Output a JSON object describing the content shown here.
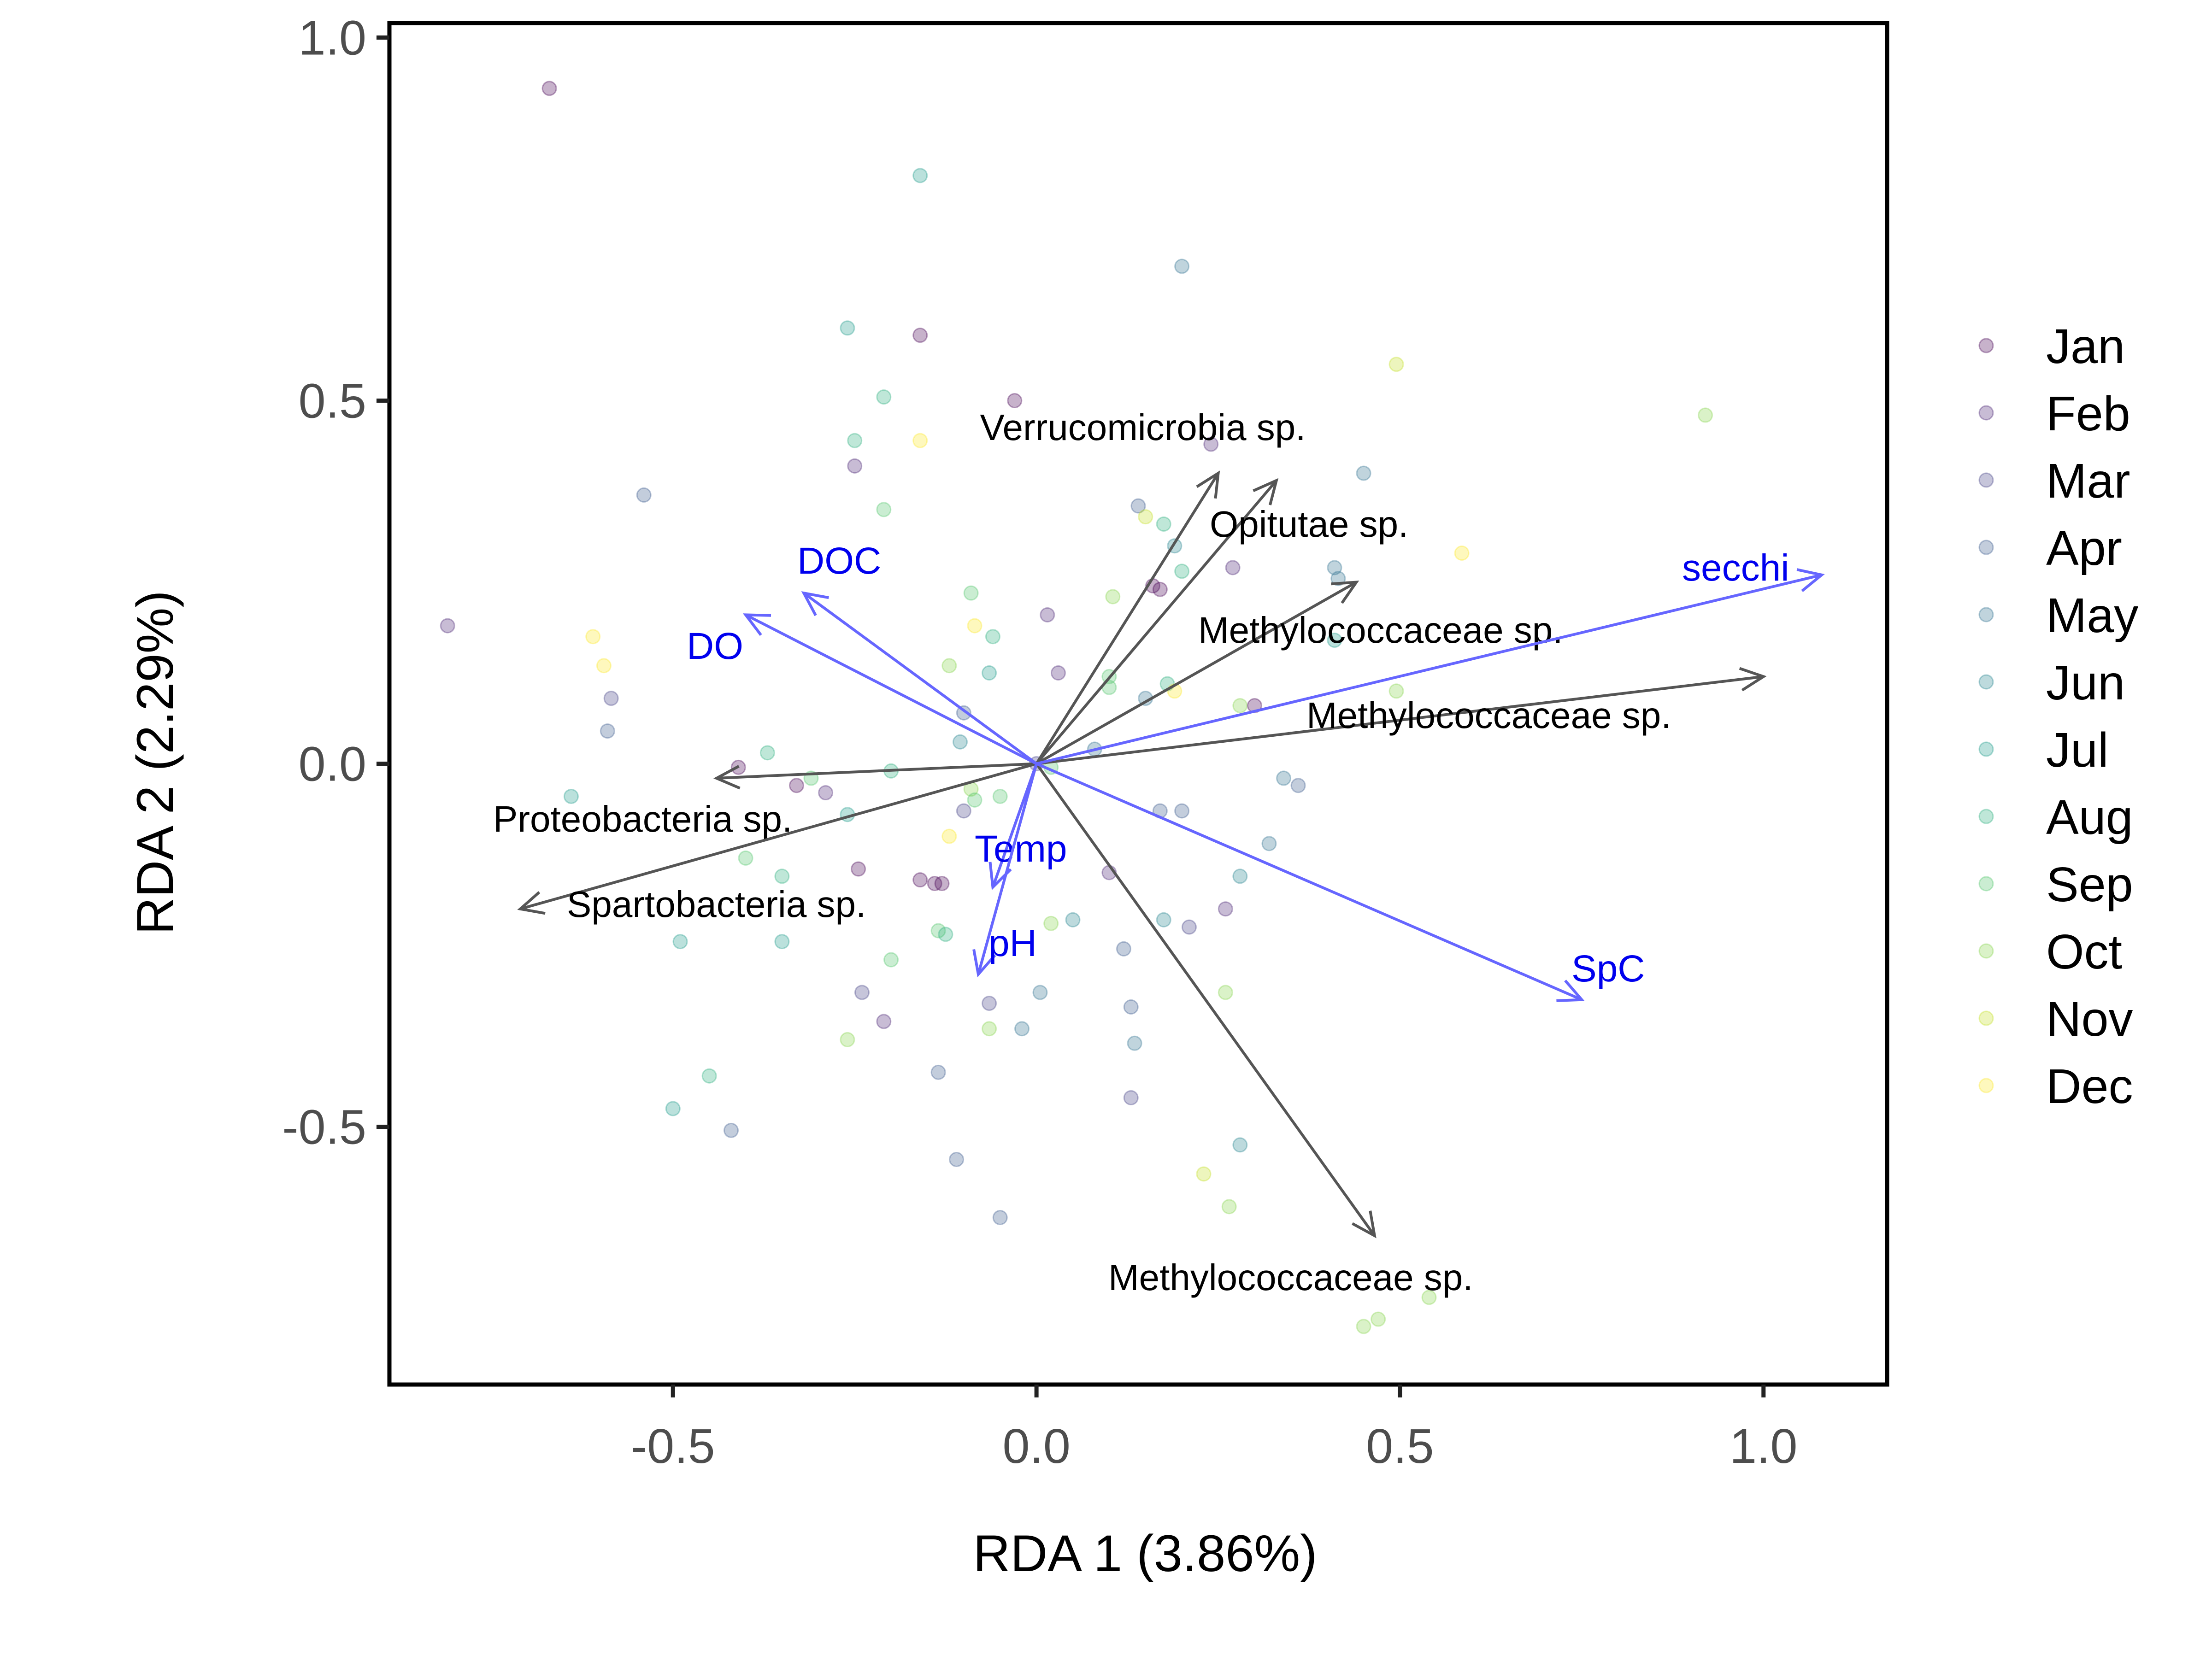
{
  "chart_data": {
    "type": "scatter",
    "xlabel": "RDA 1 (3.86%)",
    "ylabel": "RDA 2 (2.29%)",
    "xlim": [
      -0.89,
      1.17
    ],
    "ylim": [
      -0.855,
      1.02
    ],
    "xticks": [
      -0.5,
      0.0,
      0.5,
      1.0
    ],
    "xtick_labels": [
      "-0.5",
      "0.0",
      "0.5",
      "1.0"
    ],
    "yticks": [
      -0.5,
      0.0,
      0.5,
      1.0
    ],
    "ytick_labels": [
      "-0.5",
      "0.0",
      "0.5",
      "1.0"
    ],
    "grid": false,
    "legend_position": "right",
    "legend": [
      {
        "name": "Jan",
        "color": "#440154"
      },
      {
        "name": "Feb",
        "color": "#482173"
      },
      {
        "name": "Mar",
        "color": "#433E85"
      },
      {
        "name": "Apr",
        "color": "#38598C"
      },
      {
        "name": "May",
        "color": "#2D708E"
      },
      {
        "name": "Jun",
        "color": "#25858E"
      },
      {
        "name": "Jul",
        "color": "#1E9B8A"
      },
      {
        "name": "Aug",
        "color": "#2BB07F"
      },
      {
        "name": "Sep",
        "color": "#51C56A"
      },
      {
        "name": "Oct",
        "color": "#85D54A"
      },
      {
        "name": "Nov",
        "color": "#C2DF23"
      },
      {
        "name": "Dec",
        "color": "#FDE725"
      }
    ],
    "point_opacity": 0.3,
    "points": [
      {
        "x": -0.67,
        "y": 0.93,
        "group": "Jan"
      },
      {
        "x": -0.81,
        "y": 0.19,
        "group": "Feb"
      },
      {
        "x": -0.54,
        "y": 0.37,
        "group": "Apr"
      },
      {
        "x": -0.61,
        "y": 0.175,
        "group": "Dec"
      },
      {
        "x": -0.595,
        "y": 0.135,
        "group": "Dec"
      },
      {
        "x": -0.585,
        "y": 0.09,
        "group": "Mar"
      },
      {
        "x": -0.59,
        "y": 0.045,
        "group": "Apr"
      },
      {
        "x": -0.64,
        "y": -0.045,
        "group": "Jul"
      },
      {
        "x": -0.41,
        "y": -0.005,
        "group": "Jan"
      },
      {
        "x": -0.37,
        "y": 0.015,
        "group": "Aug"
      },
      {
        "x": -0.33,
        "y": -0.03,
        "group": "Jan"
      },
      {
        "x": -0.31,
        "y": -0.02,
        "group": "Sep"
      },
      {
        "x": -0.29,
        "y": -0.04,
        "group": "Feb"
      },
      {
        "x": -0.26,
        "y": -0.07,
        "group": "Jul"
      },
      {
        "x": -0.4,
        "y": -0.13,
        "group": "Sep"
      },
      {
        "x": -0.35,
        "y": -0.155,
        "group": "Aug"
      },
      {
        "x": -0.49,
        "y": -0.245,
        "group": "Jul"
      },
      {
        "x": -0.35,
        "y": -0.245,
        "group": "Jul"
      },
      {
        "x": -0.45,
        "y": -0.43,
        "group": "Aug"
      },
      {
        "x": -0.5,
        "y": -0.475,
        "group": "Jul"
      },
      {
        "x": -0.42,
        "y": -0.505,
        "group": "Apr"
      },
      {
        "x": -0.26,
        "y": 0.6,
        "group": "Jul"
      },
      {
        "x": -0.16,
        "y": 0.81,
        "group": "Jul"
      },
      {
        "x": -0.16,
        "y": 0.59,
        "group": "Jan"
      },
      {
        "x": -0.21,
        "y": 0.505,
        "group": "Aug"
      },
      {
        "x": -0.25,
        "y": 0.445,
        "group": "Aug"
      },
      {
        "x": -0.16,
        "y": 0.445,
        "group": "Dec"
      },
      {
        "x": -0.25,
        "y": 0.41,
        "group": "Feb"
      },
      {
        "x": -0.21,
        "y": 0.35,
        "group": "Sep"
      },
      {
        "x": -0.03,
        "y": 0.5,
        "group": "Jan"
      },
      {
        "x": -0.09,
        "y": 0.235,
        "group": "Sep"
      },
      {
        "x": -0.085,
        "y": 0.19,
        "group": "Dec"
      },
      {
        "x": -0.06,
        "y": 0.175,
        "group": "Aug"
      },
      {
        "x": -0.12,
        "y": 0.135,
        "group": "Oct"
      },
      {
        "x": -0.065,
        "y": 0.125,
        "group": "Jul"
      },
      {
        "x": 0.015,
        "y": 0.205,
        "group": "Feb"
      },
      {
        "x": 0.03,
        "y": 0.125,
        "group": "Feb"
      },
      {
        "x": -0.1,
        "y": 0.07,
        "group": "Apr"
      },
      {
        "x": -0.105,
        "y": 0.03,
        "group": "Jun"
      },
      {
        "x": -0.2,
        "y": -0.01,
        "group": "Aug"
      },
      {
        "x": -0.09,
        "y": -0.035,
        "group": "Oct"
      },
      {
        "x": -0.05,
        "y": -0.045,
        "group": "Sep"
      },
      {
        "x": -0.085,
        "y": -0.05,
        "group": "Sep"
      },
      {
        "x": -0.1,
        "y": -0.065,
        "group": "Mar"
      },
      {
        "x": -0.12,
        "y": -0.1,
        "group": "Dec"
      },
      {
        "x": -0.245,
        "y": -0.145,
        "group": "Jan"
      },
      {
        "x": -0.16,
        "y": -0.16,
        "group": "Jan"
      },
      {
        "x": -0.14,
        "y": -0.165,
        "group": "Jan"
      },
      {
        "x": -0.13,
        "y": -0.165,
        "group": "Jan"
      },
      {
        "x": -0.2,
        "y": -0.27,
        "group": "Sep"
      },
      {
        "x": -0.135,
        "y": -0.23,
        "group": "Sep"
      },
      {
        "x": -0.125,
        "y": -0.235,
        "group": "Aug"
      },
      {
        "x": -0.24,
        "y": -0.315,
        "group": "Mar"
      },
      {
        "x": -0.21,
        "y": -0.355,
        "group": "Feb"
      },
      {
        "x": -0.26,
        "y": -0.38,
        "group": "Oct"
      },
      {
        "x": -0.135,
        "y": -0.425,
        "group": "Apr"
      },
      {
        "x": -0.11,
        "y": -0.545,
        "group": "Apr"
      },
      {
        "x": -0.05,
        "y": -0.625,
        "group": "Apr"
      },
      {
        "x": -0.065,
        "y": -0.33,
        "group": "Mar"
      },
      {
        "x": 0.005,
        "y": -0.315,
        "group": "May"
      },
      {
        "x": -0.065,
        "y": -0.365,
        "group": "Oct"
      },
      {
        "x": -0.02,
        "y": -0.365,
        "group": "May"
      },
      {
        "x": 0.05,
        "y": -0.215,
        "group": "Jun"
      },
      {
        "x": 0.02,
        "y": -0.22,
        "group": "Oct"
      },
      {
        "x": 0.0,
        "y": 0.0,
        "group": "Mar"
      },
      {
        "x": 0.02,
        "y": -0.005,
        "group": "Sep"
      },
      {
        "x": 0.08,
        "y": 0.02,
        "group": "May"
      },
      {
        "x": 0.14,
        "y": 0.355,
        "group": "Apr"
      },
      {
        "x": 0.15,
        "y": 0.34,
        "group": "Nov"
      },
      {
        "x": 0.175,
        "y": 0.33,
        "group": "Aug"
      },
      {
        "x": 0.19,
        "y": 0.3,
        "group": "Jun"
      },
      {
        "x": 0.2,
        "y": 0.265,
        "group": "Aug"
      },
      {
        "x": 0.2,
        "y": 0.685,
        "group": "May"
      },
      {
        "x": 0.105,
        "y": 0.23,
        "group": "Oct"
      },
      {
        "x": 0.16,
        "y": 0.245,
        "group": "Jan"
      },
      {
        "x": 0.17,
        "y": 0.24,
        "group": "Jan"
      },
      {
        "x": 0.1,
        "y": 0.12,
        "group": "Sep"
      },
      {
        "x": 0.1,
        "y": 0.105,
        "group": "Sep"
      },
      {
        "x": 0.15,
        "y": 0.09,
        "group": "May"
      },
      {
        "x": 0.18,
        "y": 0.11,
        "group": "Aug"
      },
      {
        "x": 0.19,
        "y": 0.1,
        "group": "Dec"
      },
      {
        "x": 0.24,
        "y": 0.44,
        "group": "Feb"
      },
      {
        "x": 0.27,
        "y": 0.27,
        "group": "Feb"
      },
      {
        "x": 0.28,
        "y": 0.08,
        "group": "Oct"
      },
      {
        "x": 0.3,
        "y": 0.08,
        "group": "Jan"
      },
      {
        "x": 0.34,
        "y": -0.02,
        "group": "May"
      },
      {
        "x": 0.36,
        "y": -0.03,
        "group": "Apr"
      },
      {
        "x": 0.32,
        "y": -0.11,
        "group": "May"
      },
      {
        "x": 0.41,
        "y": 0.27,
        "group": "May"
      },
      {
        "x": 0.415,
        "y": 0.255,
        "group": "May"
      },
      {
        "x": 0.45,
        "y": 0.4,
        "group": "May"
      },
      {
        "x": 0.41,
        "y": 0.17,
        "group": "Jul"
      },
      {
        "x": 0.495,
        "y": 0.1,
        "group": "Oct"
      },
      {
        "x": 0.495,
        "y": 0.55,
        "group": "Nov"
      },
      {
        "x": 0.585,
        "y": 0.29,
        "group": "Dec"
      },
      {
        "x": 0.92,
        "y": 0.48,
        "group": "Oct"
      },
      {
        "x": 0.17,
        "y": -0.065,
        "group": "Apr"
      },
      {
        "x": 0.2,
        "y": -0.065,
        "group": "Apr"
      },
      {
        "x": 0.28,
        "y": -0.155,
        "group": "Jun"
      },
      {
        "x": 0.1,
        "y": -0.15,
        "group": "Feb"
      },
      {
        "x": 0.26,
        "y": -0.2,
        "group": "Feb"
      },
      {
        "x": 0.175,
        "y": -0.215,
        "group": "Jun"
      },
      {
        "x": 0.21,
        "y": -0.225,
        "group": "Mar"
      },
      {
        "x": 0.12,
        "y": -0.255,
        "group": "Apr"
      },
      {
        "x": 0.26,
        "y": -0.315,
        "group": "Oct"
      },
      {
        "x": 0.13,
        "y": -0.335,
        "group": "Apr"
      },
      {
        "x": 0.135,
        "y": -0.385,
        "group": "May"
      },
      {
        "x": 0.13,
        "y": -0.46,
        "group": "Mar"
      },
      {
        "x": 0.28,
        "y": -0.525,
        "group": "Jun"
      },
      {
        "x": 0.23,
        "y": -0.565,
        "group": "Nov"
      },
      {
        "x": 0.265,
        "y": -0.61,
        "group": "Oct"
      },
      {
        "x": 0.45,
        "y": -0.775,
        "group": "Oct"
      },
      {
        "x": 0.47,
        "y": -0.765,
        "group": "Oct"
      },
      {
        "x": 0.54,
        "y": -0.735,
        "group": "Oct"
      }
    ],
    "species_arrows": [
      {
        "label": "Verrucomicrobia sp.",
        "x": 0.25,
        "y": 0.4
      },
      {
        "label": "Opitutae sp.",
        "x": 0.33,
        "y": 0.39
      },
      {
        "label": "Methylococcaceae sp.",
        "x": 0.44,
        "y": 0.25
      },
      {
        "label": "Methylococcaceae sp.",
        "x": 1.0,
        "y": 0.12
      },
      {
        "label": "Proteobacteria sp.",
        "x": -0.44,
        "y": -0.02
      },
      {
        "label": "Spartobacteria sp.",
        "x": -0.71,
        "y": -0.2
      },
      {
        "label": "Methylococcaceae sp.",
        "x": 0.465,
        "y": -0.65
      }
    ],
    "env_arrows": [
      {
        "label": "DOC",
        "x": -0.32,
        "y": 0.235
      },
      {
        "label": "DO",
        "x": -0.4,
        "y": 0.205
      },
      {
        "label": "secchi",
        "x": 1.08,
        "y": 0.26
      },
      {
        "label": "Temp",
        "x": -0.06,
        "y": -0.17
      },
      {
        "label": "pH",
        "x": -0.08,
        "y": -0.29
      },
      {
        "label": "SpC",
        "x": 0.75,
        "y": -0.325
      }
    ],
    "species_arrow_color": "#555555",
    "env_arrow_color": "#6666FF",
    "env_label_color": "#0000EE",
    "species_label_color": "#000000"
  }
}
